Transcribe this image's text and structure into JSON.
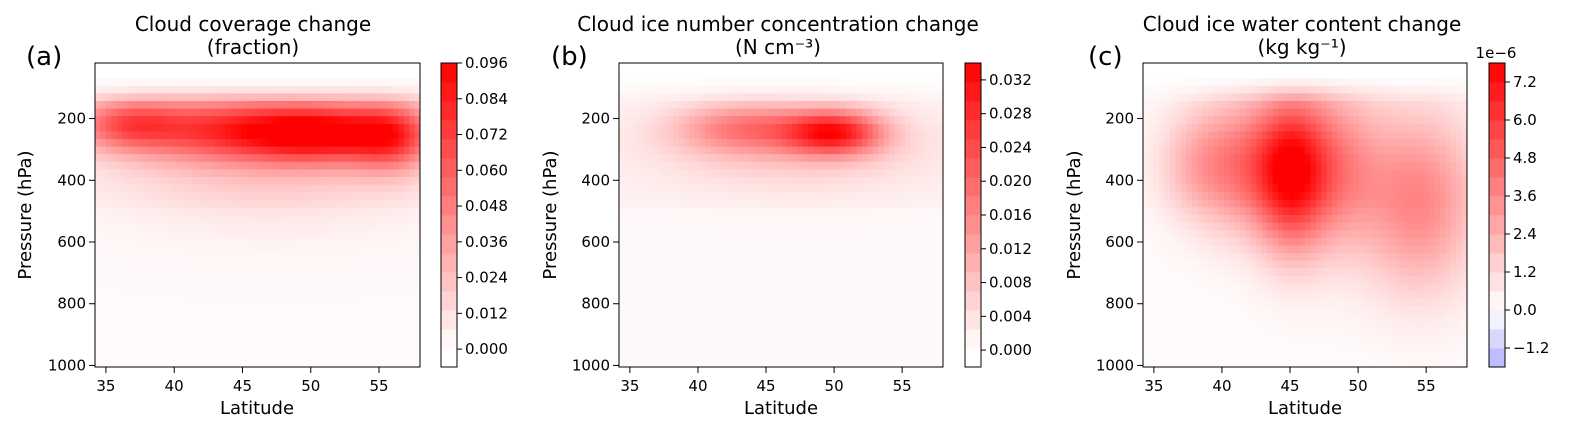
{
  "figure": {
    "panel_labels": [
      "(a)",
      "(b)",
      "(c)"
    ]
  },
  "chart_data": [
    {
      "type": "heatmap",
      "panel_label": "(a)",
      "title": "Cloud coverage change",
      "subtitle": "(fraction)",
      "xlabel": "Latitude",
      "ylabel": "Pressure (hPa)",
      "xlim": [
        34.2,
        58.0
      ],
      "ylim": [
        1005,
        20
      ],
      "y_inverted": true,
      "x_ticks": [
        "35",
        "40",
        "45",
        "50",
        "55"
      ],
      "y_ticks": [
        "200",
        "400",
        "600",
        "800",
        "1000"
      ],
      "colorbar": {
        "range": [
          -0.006,
          0.096
        ],
        "ticks": [
          "0.000",
          "0.012",
          "0.024",
          "0.036",
          "0.048",
          "0.060",
          "0.072",
          "0.084",
          "0.096"
        ],
        "offset_label": "",
        "colors": [
          "#ffffff",
          "#ff0000"
        ]
      },
      "field": {
        "base": 0.004,
        "features": [
          {
            "lat": 42.0,
            "p": 230,
            "value": 0.05,
            "sigma_lat": 5.5,
            "sigma_p": 70
          },
          {
            "lat": 51.0,
            "p": 245,
            "value": 0.08,
            "sigma_lat": 4.5,
            "sigma_p": 65
          },
          {
            "lat": 36.5,
            "p": 215,
            "value": 0.035,
            "sigma_lat": 2.5,
            "sigma_p": 55
          },
          {
            "lat": 47.0,
            "p": 330,
            "value": 0.02,
            "sigma_lat": 8.0,
            "sigma_p": 130
          },
          {
            "lat": 56.0,
            "p": 260,
            "value": 0.04,
            "sigma_lat": 2.0,
            "sigma_p": 80
          }
        ]
      }
    },
    {
      "type": "heatmap",
      "panel_label": "(b)",
      "title": "Cloud ice number concentration change",
      "subtitle": "(N cm⁻³)",
      "xlabel": "Latitude",
      "ylabel": "Pressure (hPa)",
      "xlim": [
        34.2,
        58.0
      ],
      "ylim": [
        1005,
        20
      ],
      "y_inverted": true,
      "x_ticks": [
        "35",
        "40",
        "45",
        "50",
        "55"
      ],
      "y_ticks": [
        "200",
        "400",
        "600",
        "800",
        "1000"
      ],
      "colorbar": {
        "range": [
          -0.002,
          0.034
        ],
        "ticks": [
          "0.000",
          "0.004",
          "0.008",
          "0.012",
          "0.016",
          "0.020",
          "0.024",
          "0.028",
          "0.032"
        ],
        "offset_label": "",
        "colors": [
          "#ffffff",
          "#ff0000"
        ]
      },
      "field": {
        "base": 0.0015,
        "features": [
          {
            "lat": 43.5,
            "p": 230,
            "value": 0.014,
            "sigma_lat": 3.5,
            "sigma_p": 55
          },
          {
            "lat": 50.0,
            "p": 245,
            "value": 0.026,
            "sigma_lat": 2.5,
            "sigma_p": 50
          },
          {
            "lat": 47.0,
            "p": 300,
            "value": 0.006,
            "sigma_lat": 7.0,
            "sigma_p": 90
          }
        ]
      }
    },
    {
      "type": "heatmap",
      "panel_label": "(c)",
      "title": "Cloud ice water content change",
      "subtitle": "(kg kg⁻¹)",
      "xlabel": "Latitude",
      "ylabel": "Pressure (hPa)",
      "xlim": [
        34.2,
        58.0
      ],
      "ylim": [
        1005,
        20
      ],
      "y_inverted": true,
      "x_ticks": [
        "35",
        "40",
        "45",
        "50",
        "55"
      ],
      "y_ticks": [
        "200",
        "400",
        "600",
        "800",
        "1000"
      ],
      "colorbar": {
        "range": [
          -1.8,
          7.8
        ],
        "ticks": [
          "−1.2",
          "0.0",
          "1.2",
          "2.4",
          "3.6",
          "4.8",
          "6.0",
          "7.2"
        ],
        "tick_values": [
          -1.2,
          0.0,
          1.2,
          2.4,
          3.6,
          4.8,
          6.0,
          7.2
        ],
        "offset_label": "1e−6",
        "colors": [
          "#b0b0ff",
          "#ffffff",
          "#ff0000"
        ]
      },
      "field": {
        "base": 0.2,
        "features": [
          {
            "lat": 41.5,
            "p": 350,
            "value": 3.5,
            "sigma_lat": 2.5,
            "sigma_p": 150
          },
          {
            "lat": 45.0,
            "p": 380,
            "value": 5.5,
            "sigma_lat": 1.8,
            "sigma_p": 170
          },
          {
            "lat": 48.0,
            "p": 360,
            "value": 3.5,
            "sigma_lat": 2.5,
            "sigma_p": 180
          },
          {
            "lat": 54.5,
            "p": 470,
            "value": 3.5,
            "sigma_lat": 3.0,
            "sigma_p": 200
          },
          {
            "lat": 38.0,
            "p": 350,
            "value": 1.5,
            "sigma_lat": 2.0,
            "sigma_p": 120
          }
        ]
      }
    }
  ]
}
